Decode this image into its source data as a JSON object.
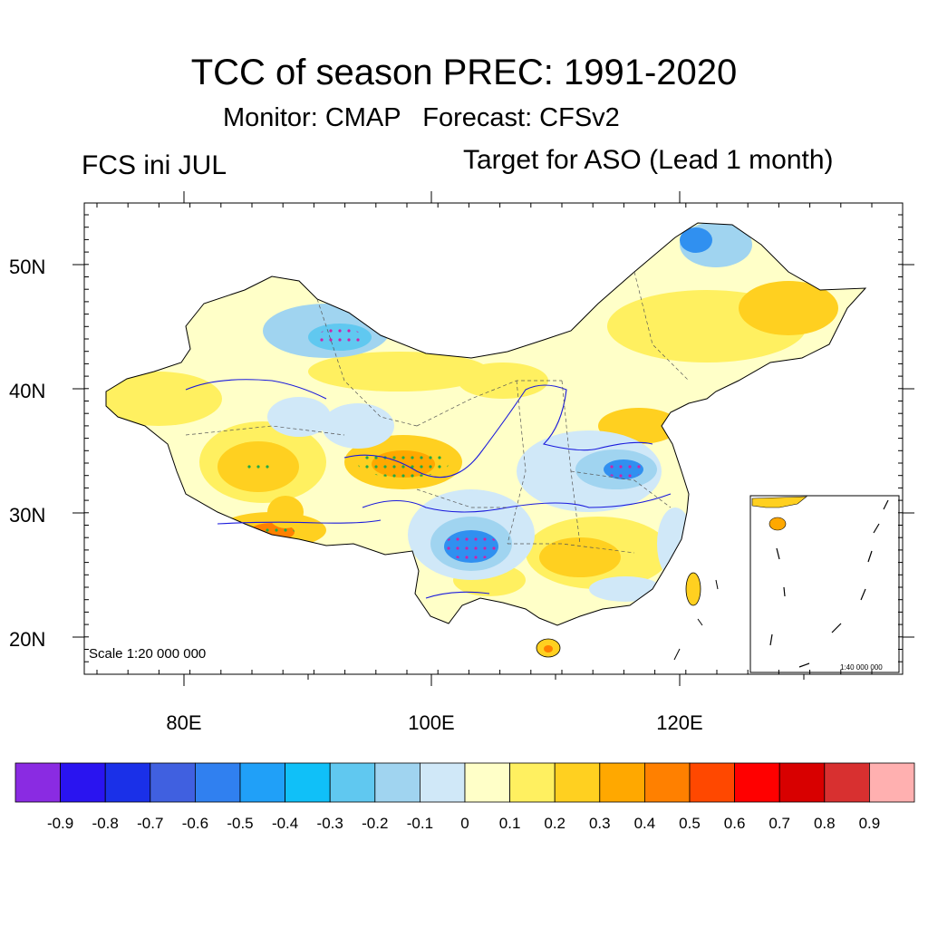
{
  "title": "TCC of season PREC: 1991-2020",
  "subtitle_monitor": "Monitor: CMAP",
  "subtitle_forecast": "Forecast: CFSv2",
  "left_label": "FCS ini JUL",
  "right_label": "Target for ASO (Lead 1 month)",
  "scale_main": "Scale 1:20 000 000",
  "scale_inset": "1:40 000 000",
  "lat_ticks": [
    "50N",
    "40N",
    "30N",
    "20N"
  ],
  "lon_ticks": [
    "80E",
    "100E",
    "120E"
  ],
  "colorbar": {
    "labels": [
      "-0.9",
      "-0.8",
      "-0.7",
      "-0.6",
      "-0.5",
      "-0.4",
      "-0.3",
      "-0.2",
      "-0.1",
      "0",
      "0.1",
      "0.2",
      "0.3",
      "0.4",
      "0.5",
      "0.6",
      "0.7",
      "0.8",
      "0.9"
    ],
    "colors": [
      "#8a2be2",
      "#2a14f0",
      "#1a30e8",
      "#4060e0",
      "#3080f0",
      "#20a0f8",
      "#10c0f8",
      "#60c8f0",
      "#a0d4f0",
      "#d0e8f8",
      "#ffffc8",
      "#fff060",
      "#ffd020",
      "#ffa800",
      "#ff8000",
      "#ff4800",
      "#ff0000",
      "#d80000",
      "#d83030",
      "#ffb0b0"
    ]
  },
  "map_colors": {
    "land_base": "#ffffc8",
    "pos_weak": "#fff060",
    "pos_mid": "#ffd020",
    "pos_strong": "#ffa800",
    "pos_high": "#ff8000",
    "neg_weak": "#d0e8f8",
    "neg_mid": "#a0d4f0",
    "neg_strong": "#60c8f0",
    "neg_high": "#3090f0",
    "stipple": "#22aa44",
    "rivers": "#1a1adc",
    "borders": "#000000"
  }
}
